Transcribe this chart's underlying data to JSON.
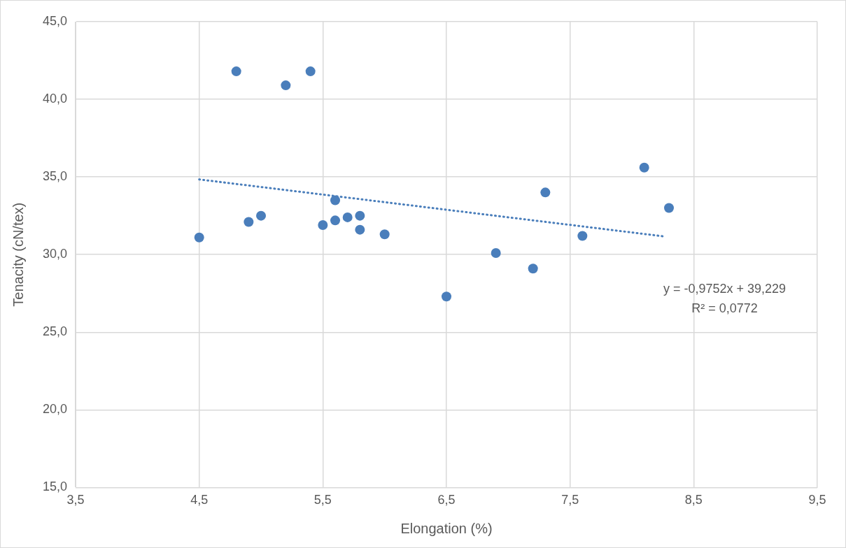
{
  "chart_data": {
    "type": "scatter",
    "xlabel": "Elongation (%)",
    "ylabel": "Tenacity (cN/tex)",
    "series": [
      {
        "type": "scatter",
        "color": "#4a7ebb",
        "x": [
          4.5,
          4.8,
          4.9,
          5.0,
          5.2,
          5.4,
          5.5,
          5.6,
          5.6,
          5.7,
          5.8,
          5.8,
          6.0,
          6.5,
          6.9,
          7.2,
          7.3,
          7.6,
          8.1,
          8.3
        ],
        "values": [
          31.1,
          41.8,
          32.1,
          32.5,
          40.9,
          41.8,
          31.9,
          33.5,
          32.2,
          32.4,
          32.5,
          31.6,
          31.3,
          27.3,
          30.1,
          29.1,
          34.0,
          31.2,
          35.6,
          33.0
        ]
      },
      {
        "type": "line",
        "color": "#4a7ebb",
        "line_style": "dotted",
        "marker": "none",
        "x": [
          4.5,
          8.27
        ],
        "values": [
          34.84,
          31.16
        ]
      }
    ],
    "xlim": [
      3.5,
      9.5
    ],
    "xticks": [
      {
        "value": 3.5,
        "label": "3,5"
      },
      {
        "value": 4.5,
        "label": "4,5"
      },
      {
        "value": 5.5,
        "label": "5,5"
      },
      {
        "value": 6.5,
        "label": "6,5"
      },
      {
        "value": 7.5,
        "label": "7,5"
      },
      {
        "value": 8.5,
        "label": "8,5"
      },
      {
        "value": 9.5,
        "label": "9,5"
      }
    ],
    "ylim": [
      15,
      45
    ],
    "yticks": [
      {
        "value": 15,
        "label": "15,0"
      },
      {
        "value": 20,
        "label": "20,0"
      },
      {
        "value": 25,
        "label": "25,0"
      },
      {
        "value": 30,
        "label": "30,0"
      },
      {
        "value": 35,
        "label": "35,0"
      },
      {
        "value": 40,
        "label": "40,0"
      },
      {
        "value": 45,
        "label": "45,0"
      }
    ],
    "annotations": [
      "y = -0,9752x + 39,229",
      "R² = 0,0772"
    ],
    "grid": true,
    "legend": false,
    "marker": "circle"
  }
}
